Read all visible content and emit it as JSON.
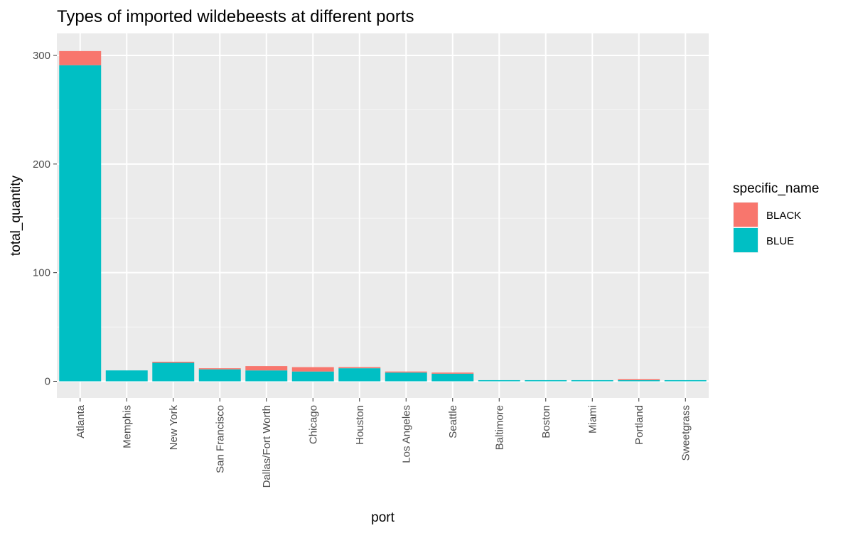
{
  "chart_data": {
    "type": "bar",
    "stacked": true,
    "title": "Types of imported wildebeests at different ports",
    "xlabel": "port",
    "ylabel": "total_quantity",
    "ylim": [
      0,
      300
    ],
    "yticks": [
      0,
      100,
      200,
      300
    ],
    "grid": true,
    "legend": {
      "title": "specific_name",
      "placement": "right",
      "entries": [
        {
          "label": "BLACK",
          "color": "#F8766D"
        },
        {
          "label": "BLUE",
          "color": "#00BFC4"
        }
      ]
    },
    "categories": [
      "Atlanta",
      "Memphis",
      "New York",
      "San Francisco",
      "Dallas/Fort Worth",
      "Chicago",
      "Houston",
      "Los Angeles",
      "Seattle",
      "Baltimore",
      "Boston",
      "Miami",
      "Portland",
      "Sweetgrass"
    ],
    "series": [
      {
        "name": "BLUE",
        "color": "#00BFC4",
        "values": [
          291,
          10,
          17,
          11,
          10,
          9,
          12,
          8,
          7,
          1,
          1,
          1,
          1,
          1
        ]
      },
      {
        "name": "BLACK",
        "color": "#F8766D",
        "values": [
          13,
          0,
          1,
          1,
          4,
          4,
          1,
          1,
          1,
          0,
          0,
          0,
          1,
          0
        ]
      }
    ]
  }
}
